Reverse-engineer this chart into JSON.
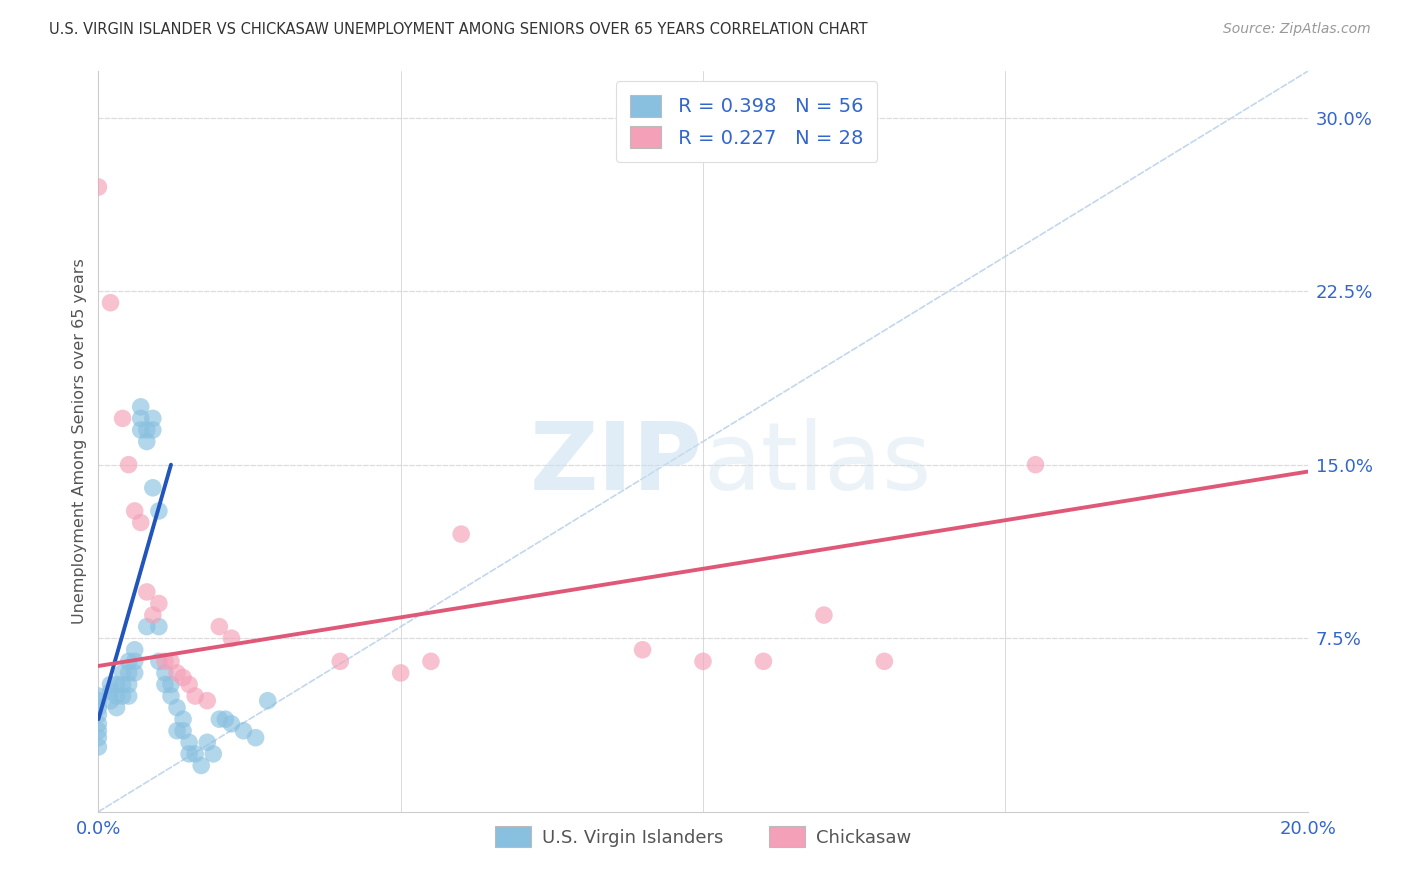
{
  "title": "U.S. VIRGIN ISLANDER VS CHICKASAW UNEMPLOYMENT AMONG SENIORS OVER 65 YEARS CORRELATION CHART",
  "source": "Source: ZipAtlas.com",
  "ylabel": "Unemployment Among Seniors over 65 years",
  "xlim": [
    0.0,
    0.2
  ],
  "ylim": [
    0.0,
    0.32
  ],
  "xtick_positions": [
    0.0,
    0.05,
    0.1,
    0.15,
    0.2
  ],
  "xtick_labels": [
    "0.0%",
    "",
    "",
    "",
    "20.0%"
  ],
  "ytick_positions": [
    0.0,
    0.075,
    0.15,
    0.225,
    0.3
  ],
  "ytick_labels": [
    "",
    "7.5%",
    "15.0%",
    "22.5%",
    "30.0%"
  ],
  "legend_R1": "R = 0.398",
  "legend_N1": "N = 56",
  "legend_R2": "R = 0.227",
  "legend_N2": "N = 28",
  "legend_label1": "U.S. Virgin Islanders",
  "legend_label2": "Chickasaw",
  "color_blue": "#89c0e0",
  "color_pink": "#f4a0b8",
  "color_blue_line": "#2255bb",
  "color_pink_line": "#e05878",
  "color_blue_text": "#3366cc",
  "color_axis_text": "#3366cc",
  "watermark_zip": "ZIP",
  "watermark_atlas": "atlas",
  "grid_color": "#dddddd",
  "diag_color": "#b8d0ea",
  "blue_scatter_x": [
    0.0,
    0.0,
    0.0,
    0.0,
    0.0,
    0.0,
    0.0,
    0.0,
    0.002,
    0.002,
    0.002,
    0.003,
    0.003,
    0.003,
    0.004,
    0.004,
    0.004,
    0.005,
    0.005,
    0.005,
    0.005,
    0.006,
    0.006,
    0.006,
    0.007,
    0.007,
    0.007,
    0.008,
    0.008,
    0.008,
    0.009,
    0.009,
    0.009,
    0.01,
    0.01,
    0.01,
    0.011,
    0.011,
    0.012,
    0.012,
    0.013,
    0.013,
    0.014,
    0.014,
    0.015,
    0.015,
    0.016,
    0.017,
    0.018,
    0.019,
    0.02,
    0.021,
    0.022,
    0.024,
    0.026,
    0.028
  ],
  "blue_scatter_y": [
    0.05,
    0.048,
    0.045,
    0.042,
    0.038,
    0.035,
    0.032,
    0.028,
    0.055,
    0.052,
    0.048,
    0.055,
    0.05,
    0.045,
    0.06,
    0.055,
    0.05,
    0.065,
    0.06,
    0.055,
    0.05,
    0.07,
    0.065,
    0.06,
    0.175,
    0.17,
    0.165,
    0.165,
    0.16,
    0.08,
    0.17,
    0.165,
    0.14,
    0.13,
    0.08,
    0.065,
    0.06,
    0.055,
    0.055,
    0.05,
    0.045,
    0.035,
    0.04,
    0.035,
    0.03,
    0.025,
    0.025,
    0.02,
    0.03,
    0.025,
    0.04,
    0.04,
    0.038,
    0.035,
    0.032,
    0.048
  ],
  "pink_scatter_x": [
    0.0,
    0.002,
    0.004,
    0.005,
    0.006,
    0.007,
    0.008,
    0.009,
    0.01,
    0.011,
    0.012,
    0.013,
    0.014,
    0.015,
    0.016,
    0.018,
    0.02,
    0.022,
    0.04,
    0.05,
    0.055,
    0.06,
    0.09,
    0.1,
    0.11,
    0.12,
    0.13,
    0.155
  ],
  "pink_scatter_y": [
    0.27,
    0.22,
    0.17,
    0.15,
    0.13,
    0.125,
    0.095,
    0.085,
    0.09,
    0.065,
    0.065,
    0.06,
    0.058,
    0.055,
    0.05,
    0.048,
    0.08,
    0.075,
    0.065,
    0.06,
    0.065,
    0.12,
    0.07,
    0.065,
    0.065,
    0.085,
    0.065,
    0.15
  ],
  "blue_trend_x": [
    0.0,
    0.012
  ],
  "blue_trend_y": [
    0.04,
    0.15
  ],
  "pink_trend_x": [
    0.0,
    0.2
  ],
  "pink_trend_y": [
    0.063,
    0.147
  ],
  "diag_line_x": [
    0.0,
    0.2
  ],
  "diag_line_y": [
    0.0,
    0.32
  ]
}
